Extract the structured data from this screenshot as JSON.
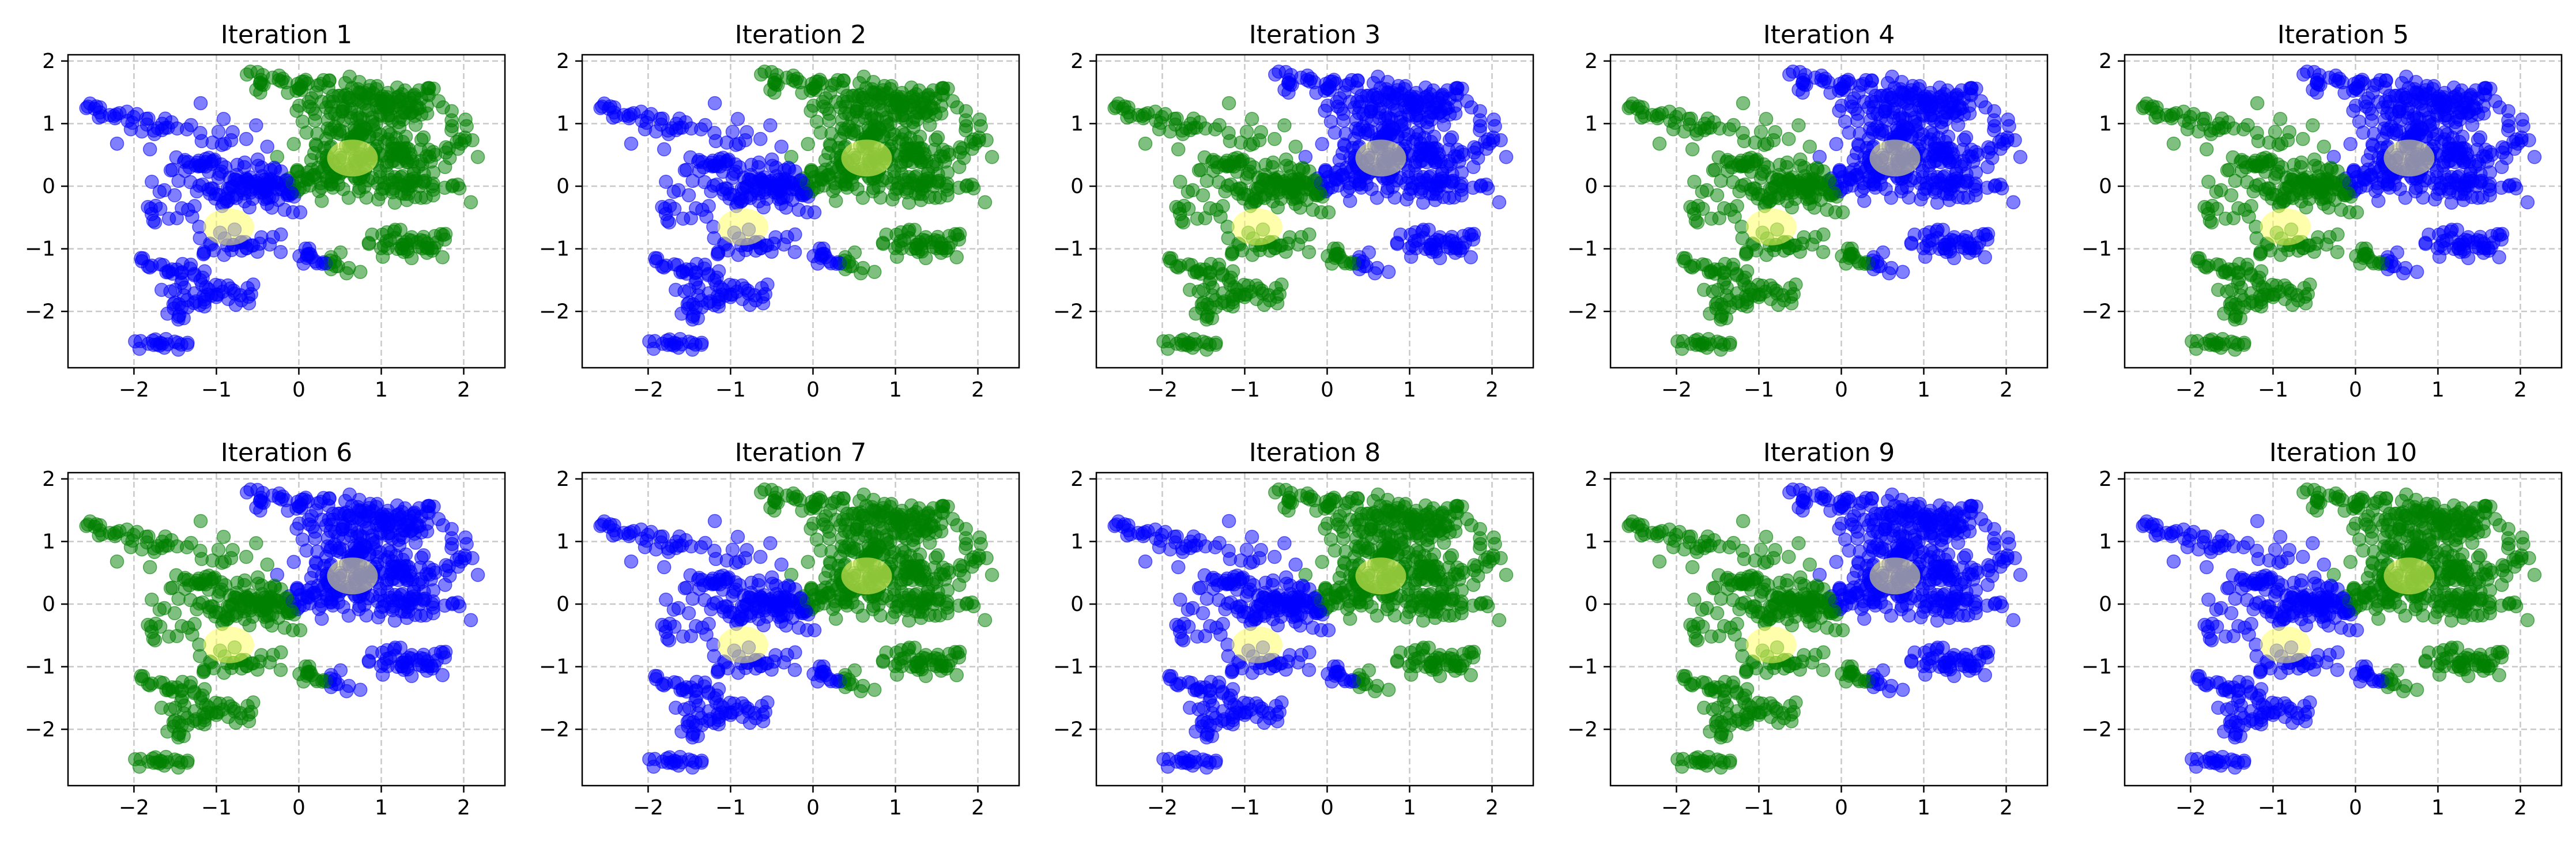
{
  "figure": {
    "layout": "2 rows x 5 columns"
  },
  "colors": {
    "cluster_a": "#0000ff",
    "cluster_b": "#008000",
    "centroid": "#ffff66",
    "grid": "#c8c8c8",
    "axes": "#000000"
  },
  "chart_data": [
    {
      "type": "scatter",
      "title": "Iteration 1",
      "xlim": [
        -2.8,
        2.5
      ],
      "ylim": [
        -2.9,
        2.1
      ],
      "xticks": [
        -2,
        -1,
        0,
        1,
        2
      ],
      "yticks": [
        -2,
        -1,
        0,
        1,
        2
      ],
      "grid": true,
      "upper_right_color": "green",
      "lower_left_color": "blue",
      "centroids": [
        {
          "x": 0.65,
          "y": 0.45
        },
        {
          "x": -0.85,
          "y": -0.65
        }
      ]
    },
    {
      "type": "scatter",
      "title": "Iteration 2",
      "xlim": [
        -2.8,
        2.5
      ],
      "ylim": [
        -2.9,
        2.1
      ],
      "xticks": [
        -2,
        -1,
        0,
        1,
        2
      ],
      "yticks": [
        -2,
        -1,
        0,
        1,
        2
      ],
      "grid": true,
      "upper_right_color": "green",
      "lower_left_color": "blue",
      "centroids": [
        {
          "x": 0.65,
          "y": 0.45
        },
        {
          "x": -0.85,
          "y": -0.65
        }
      ]
    },
    {
      "type": "scatter",
      "title": "Iteration 3",
      "xlim": [
        -2.8,
        2.5
      ],
      "ylim": [
        -2.9,
        2.1
      ],
      "xticks": [
        -2,
        -1,
        0,
        1,
        2
      ],
      "yticks": [
        -2,
        -1,
        0,
        1,
        2
      ],
      "grid": true,
      "upper_right_color": "blue",
      "lower_left_color": "green",
      "centroids": [
        {
          "x": 0.65,
          "y": 0.45
        },
        {
          "x": -0.85,
          "y": -0.65
        }
      ]
    },
    {
      "type": "scatter",
      "title": "Iteration 4",
      "xlim": [
        -2.8,
        2.5
      ],
      "ylim": [
        -2.9,
        2.1
      ],
      "xticks": [
        -2,
        -1,
        0,
        1,
        2
      ],
      "yticks": [
        -2,
        -1,
        0,
        1,
        2
      ],
      "grid": true,
      "upper_right_color": "blue",
      "lower_left_color": "green",
      "centroids": [
        {
          "x": 0.65,
          "y": 0.45
        },
        {
          "x": -0.85,
          "y": -0.65
        }
      ]
    },
    {
      "type": "scatter",
      "title": "Iteration 5",
      "xlim": [
        -2.8,
        2.5
      ],
      "ylim": [
        -2.9,
        2.1
      ],
      "xticks": [
        -2,
        -1,
        0,
        1,
        2
      ],
      "yticks": [
        -2,
        -1,
        0,
        1,
        2
      ],
      "grid": true,
      "upper_right_color": "blue",
      "lower_left_color": "green",
      "centroids": [
        {
          "x": 0.65,
          "y": 0.45
        },
        {
          "x": -0.85,
          "y": -0.65
        }
      ]
    },
    {
      "type": "scatter",
      "title": "Iteration 6",
      "xlim": [
        -2.8,
        2.5
      ],
      "ylim": [
        -2.9,
        2.1
      ],
      "xticks": [
        -2,
        -1,
        0,
        1,
        2
      ],
      "yticks": [
        -2,
        -1,
        0,
        1,
        2
      ],
      "grid": true,
      "upper_right_color": "blue",
      "lower_left_color": "green",
      "centroids": [
        {
          "x": 0.65,
          "y": 0.45
        },
        {
          "x": -0.85,
          "y": -0.65
        }
      ]
    },
    {
      "type": "scatter",
      "title": "Iteration 7",
      "xlim": [
        -2.8,
        2.5
      ],
      "ylim": [
        -2.9,
        2.1
      ],
      "xticks": [
        -2,
        -1,
        0,
        1,
        2
      ],
      "yticks": [
        -2,
        -1,
        0,
        1,
        2
      ],
      "grid": true,
      "upper_right_color": "green",
      "lower_left_color": "blue",
      "centroids": [
        {
          "x": 0.65,
          "y": 0.45
        },
        {
          "x": -0.85,
          "y": -0.65
        }
      ]
    },
    {
      "type": "scatter",
      "title": "Iteration 8",
      "xlim": [
        -2.8,
        2.5
      ],
      "ylim": [
        -2.9,
        2.1
      ],
      "xticks": [
        -2,
        -1,
        0,
        1,
        2
      ],
      "yticks": [
        -2,
        -1,
        0,
        1,
        2
      ],
      "grid": true,
      "upper_right_color": "green",
      "lower_left_color": "blue",
      "centroids": [
        {
          "x": 0.65,
          "y": 0.45
        },
        {
          "x": -0.85,
          "y": -0.65
        }
      ]
    },
    {
      "type": "scatter",
      "title": "Iteration 9",
      "xlim": [
        -2.8,
        2.5
      ],
      "ylim": [
        -2.9,
        2.1
      ],
      "xticks": [
        -2,
        -1,
        0,
        1,
        2
      ],
      "yticks": [
        -2,
        -1,
        0,
        1,
        2
      ],
      "grid": true,
      "upper_right_color": "blue",
      "lower_left_color": "green",
      "centroids": [
        {
          "x": 0.65,
          "y": 0.45
        },
        {
          "x": -0.85,
          "y": -0.65
        }
      ]
    },
    {
      "type": "scatter",
      "title": "Iteration 10",
      "xlim": [
        -2.8,
        2.5
      ],
      "ylim": [
        -2.9,
        2.1
      ],
      "xticks": [
        -2,
        -1,
        0,
        1,
        2
      ],
      "yticks": [
        -2,
        -1,
        0,
        1,
        2
      ],
      "grid": true,
      "upper_right_color": "green",
      "lower_left_color": "blue",
      "centroids": [
        {
          "x": 0.65,
          "y": 0.45
        },
        {
          "x": -0.85,
          "y": -0.65
        }
      ]
    }
  ]
}
